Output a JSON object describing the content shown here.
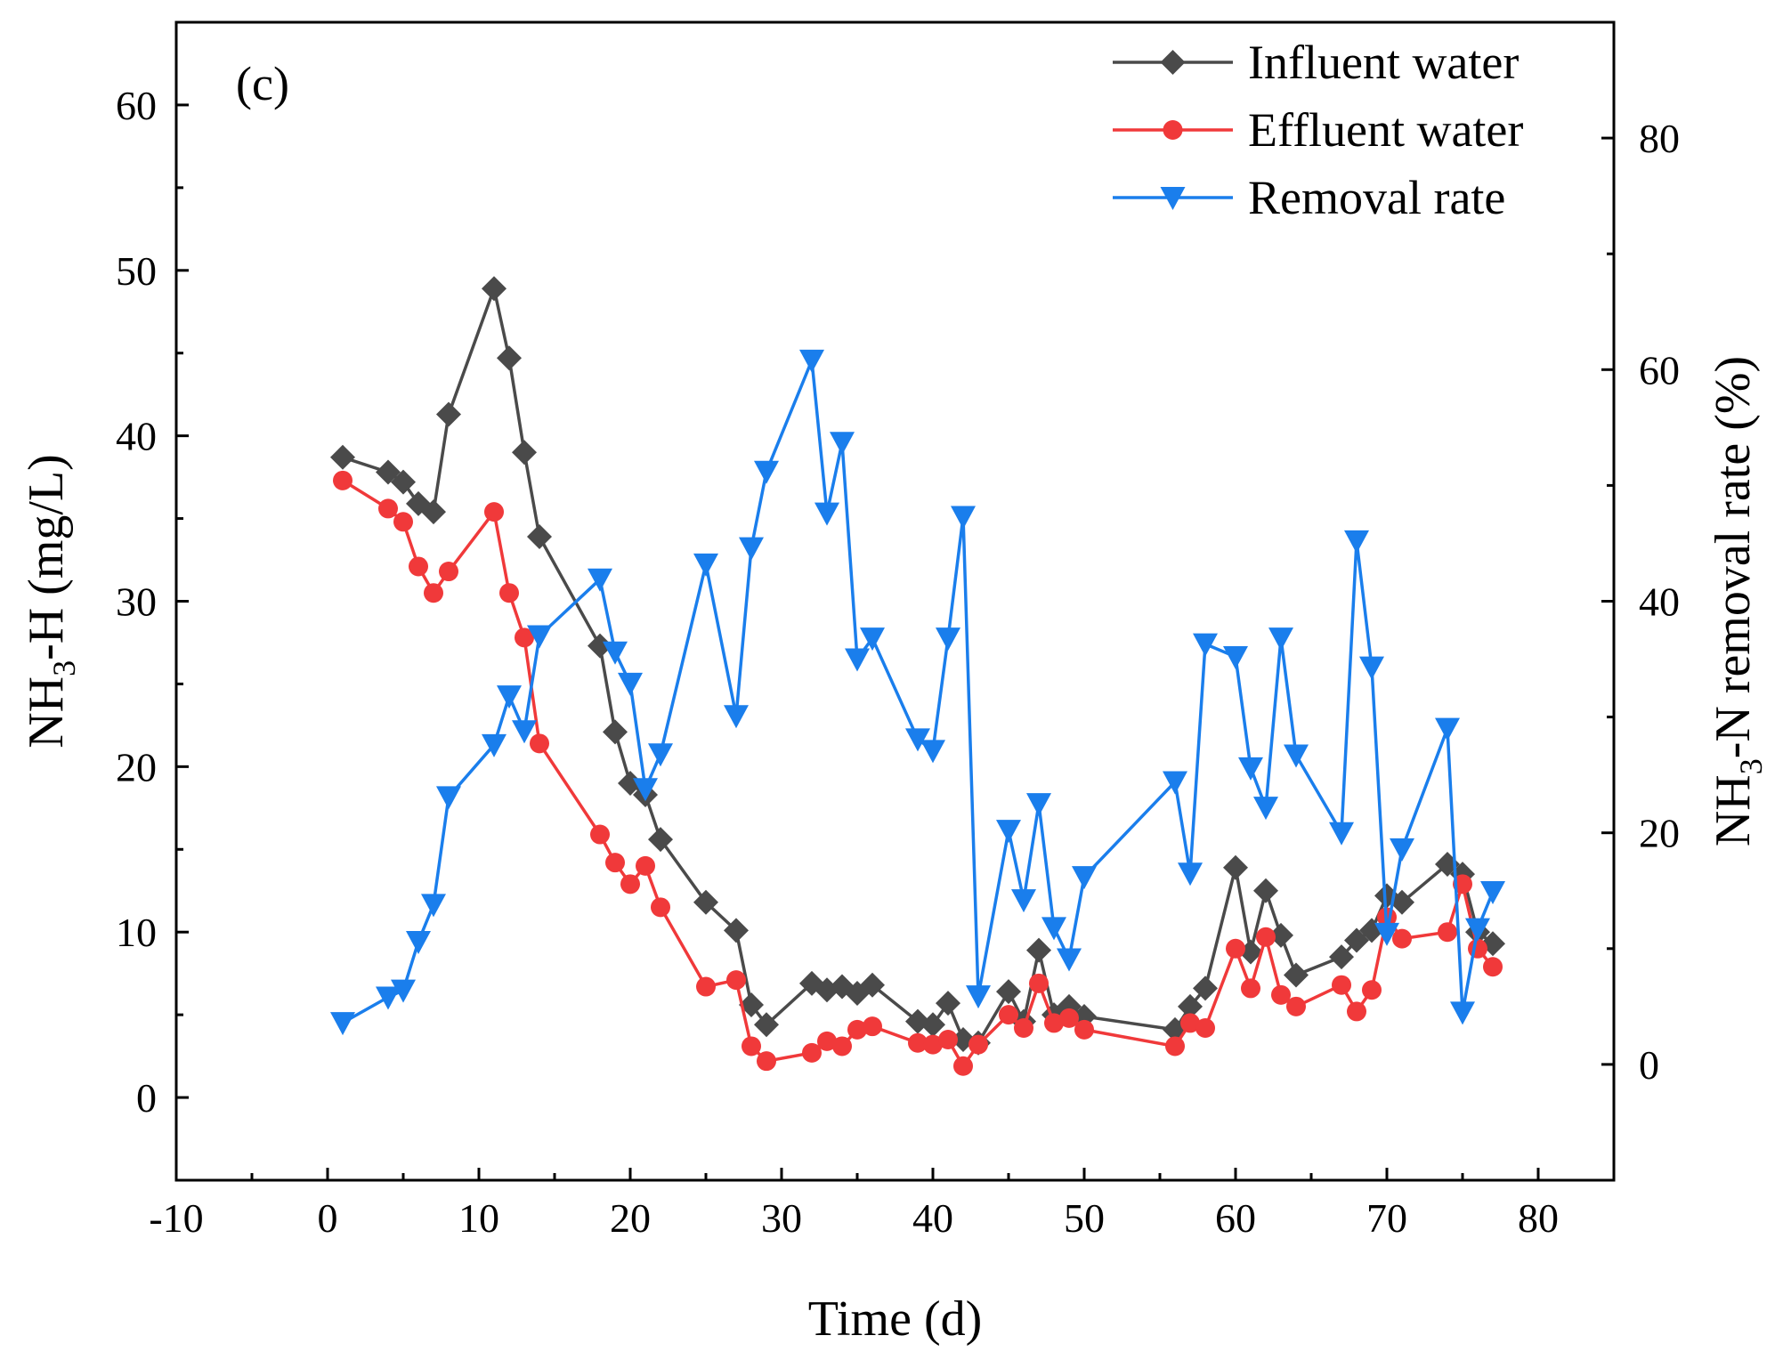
{
  "chart_data": {
    "type": "line",
    "panel_label": "(c)",
    "xlabel": "Time (d)",
    "ylabel_left": {
      "main": "NH",
      "sub": "3",
      "rest": "-H (mg/L)"
    },
    "ylabel_right": {
      "main": "NH",
      "sub": "3",
      "rest": "-N removal rate (%)"
    },
    "xlim": [
      -10,
      85
    ],
    "ylim_left": [
      -5,
      65
    ],
    "ylim_right": [
      -10,
      90
    ],
    "x_ticks": [
      -10,
      0,
      10,
      20,
      30,
      40,
      50,
      60,
      70,
      80
    ],
    "y_ticks_left": [
      0,
      10,
      20,
      30,
      40,
      50,
      60
    ],
    "y_ticks_right": [
      0,
      20,
      40,
      60,
      80
    ],
    "legend_position": "top-right",
    "series": [
      {
        "name": "Influent water",
        "axis": "left",
        "color": "#4a4a4a",
        "marker": "diamond",
        "x": [
          1,
          4,
          5,
          6,
          7,
          8,
          11,
          12,
          13,
          14,
          18,
          19,
          20,
          21,
          22,
          25,
          27,
          28,
          29,
          32,
          33,
          34,
          35,
          36,
          39,
          40,
          41,
          42,
          43,
          45,
          46,
          47,
          48,
          49,
          50,
          56,
          57,
          58,
          60,
          61,
          62,
          63,
          64,
          67,
          68,
          69,
          70,
          71,
          74,
          75,
          76,
          77
        ],
        "values": [
          38.7,
          37.8,
          37.2,
          35.9,
          35.4,
          41.3,
          48.9,
          44.7,
          39.0,
          33.9,
          27.3,
          22.1,
          19.0,
          18.3,
          15.6,
          11.8,
          10.1,
          5.6,
          4.4,
          6.9,
          6.5,
          6.7,
          6.3,
          6.8,
          4.6,
          4.4,
          5.7,
          3.5,
          3.3,
          6.4,
          4.6,
          8.9,
          5.0,
          5.5,
          4.9,
          4.1,
          5.5,
          6.6,
          13.9,
          8.8,
          12.5,
          9.8,
          7.4,
          8.5,
          9.5,
          10.1,
          12.2,
          11.8,
          14.1,
          13.5,
          10.0,
          9.3
        ]
      },
      {
        "name": "Effluent water",
        "axis": "left",
        "color": "#f0393a",
        "marker": "circle",
        "x": [
          1,
          4,
          5,
          6,
          7,
          8,
          11,
          12,
          13,
          14,
          18,
          19,
          20,
          21,
          22,
          25,
          27,
          28,
          29,
          32,
          33,
          34,
          35,
          36,
          39,
          40,
          41,
          42,
          43,
          45,
          46,
          47,
          48,
          49,
          50,
          56,
          57,
          58,
          60,
          61,
          62,
          63,
          64,
          67,
          68,
          69,
          70,
          71,
          74,
          75,
          76,
          77
        ],
        "values": [
          37.3,
          35.6,
          34.8,
          32.1,
          30.5,
          31.8,
          35.4,
          30.5,
          27.8,
          21.4,
          15.9,
          14.2,
          12.9,
          14.0,
          11.5,
          6.7,
          7.1,
          3.1,
          2.2,
          2.7,
          3.4,
          3.1,
          4.1,
          4.3,
          3.3,
          3.2,
          3.5,
          1.9,
          3.2,
          5.0,
          4.2,
          6.9,
          4.5,
          4.8,
          4.1,
          3.1,
          4.5,
          4.2,
          9.0,
          6.6,
          9.7,
          6.2,
          5.5,
          6.8,
          5.2,
          6.5,
          10.9,
          9.6,
          10.0,
          12.9,
          9.0,
          7.9
        ]
      },
      {
        "name": "Removal rate",
        "axis": "right",
        "color": "#1a7eec",
        "marker": "triangle-down",
        "x": [
          1,
          4,
          5,
          6,
          7,
          8,
          11,
          12,
          13,
          14,
          18,
          19,
          20,
          21,
          22,
          25,
          27,
          28,
          29,
          32,
          33,
          34,
          35,
          36,
          39,
          40,
          41,
          42,
          43,
          45,
          46,
          47,
          48,
          49,
          50,
          56,
          57,
          58,
          60,
          61,
          62,
          63,
          64,
          67,
          68,
          69,
          70,
          71,
          74,
          75,
          76,
          77
        ],
        "values": [
          3.6,
          5.8,
          6.4,
          10.6,
          13.8,
          23.1,
          27.6,
          31.8,
          28.8,
          37.0,
          41.9,
          35.6,
          32.9,
          23.8,
          26.8,
          43.2,
          30.1,
          44.6,
          51.2,
          60.8,
          47.6,
          53.7,
          35.0,
          36.8,
          28.1,
          27.1,
          36.8,
          47.3,
          5.9,
          20.2,
          14.2,
          22.5,
          11.8,
          9.1,
          16.2,
          24.4,
          16.5,
          36.3,
          35.2,
          25.6,
          22.2,
          36.8,
          26.7,
          20.0,
          45.2,
          34.3,
          11.3,
          18.6,
          29.0,
          4.5,
          11.7,
          14.9
        ]
      }
    ]
  }
}
